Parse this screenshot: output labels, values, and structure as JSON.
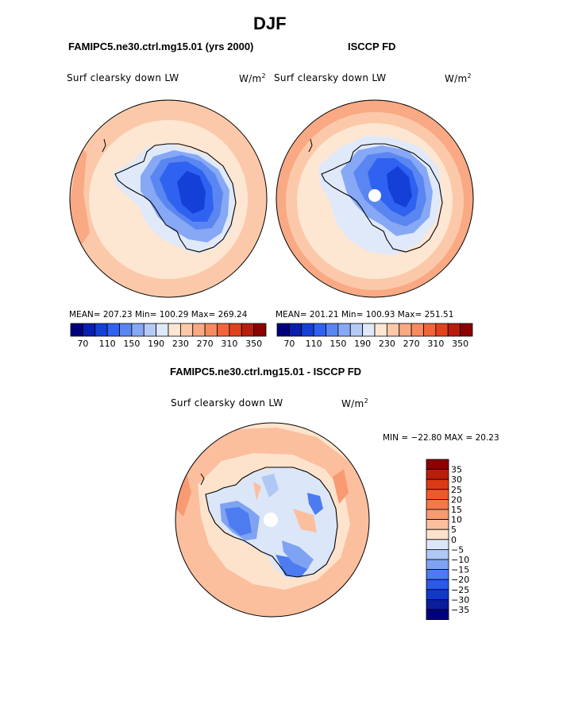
{
  "season": "DJF",
  "panels": [
    {
      "title": "FAMIPC5.ne30.ctrl.mg15.01 (yrs 2000)",
      "variable": "Surf clearsky down LW",
      "units": "W/m",
      "units_exp": "2",
      "stats": "MEAN= 207.23   Min= 100.29   Max= 269.24"
    },
    {
      "title": "ISCCP FD",
      "variable": "Surf clearsky down LW",
      "units": "W/m",
      "units_exp": "2",
      "stats": "MEAN= 201.21   Min= 100.93   Max= 251.51"
    }
  ],
  "colorbar_top": {
    "labels": [
      "70",
      "110",
      "150",
      "190",
      "230",
      "270",
      "310",
      "350"
    ],
    "colors": [
      "#00007f",
      "#0a1fb0",
      "#1440d8",
      "#2f62f0",
      "#5a86f2",
      "#87a8f4",
      "#b4cbf6",
      "#dfe9fa",
      "#fde6d2",
      "#fbc9a9",
      "#f9a983",
      "#f78a5e",
      "#f2653a",
      "#e0421e",
      "#b81d0c",
      "#8b0000"
    ]
  },
  "diff": {
    "title": "FAMIPC5.ne30.ctrl.mg15.01 - ISCCP FD",
    "variable": "Surf clearsky down LW",
    "units": "W/m",
    "units_exp": "2",
    "minmax": "MIN = −22.80  MAX =  20.23",
    "colorbar_labels": [
      "35",
      "30",
      "25",
      "20",
      "15",
      "10",
      "5",
      "0",
      "−5",
      "−10",
      "−15",
      "−20",
      "−25",
      "−30",
      "−35"
    ],
    "colorbar_colors": [
      "#8b0000",
      "#b81d0c",
      "#dc3a15",
      "#f2572b",
      "#f5784a",
      "#f89a72",
      "#fbbf9e",
      "#fde3cc",
      "#dbe6f9",
      "#b0c8f5",
      "#7fa3f2",
      "#4c7cef",
      "#2a5ae6",
      "#1238c8",
      "#0a1d9a",
      "#00007f"
    ]
  }
}
